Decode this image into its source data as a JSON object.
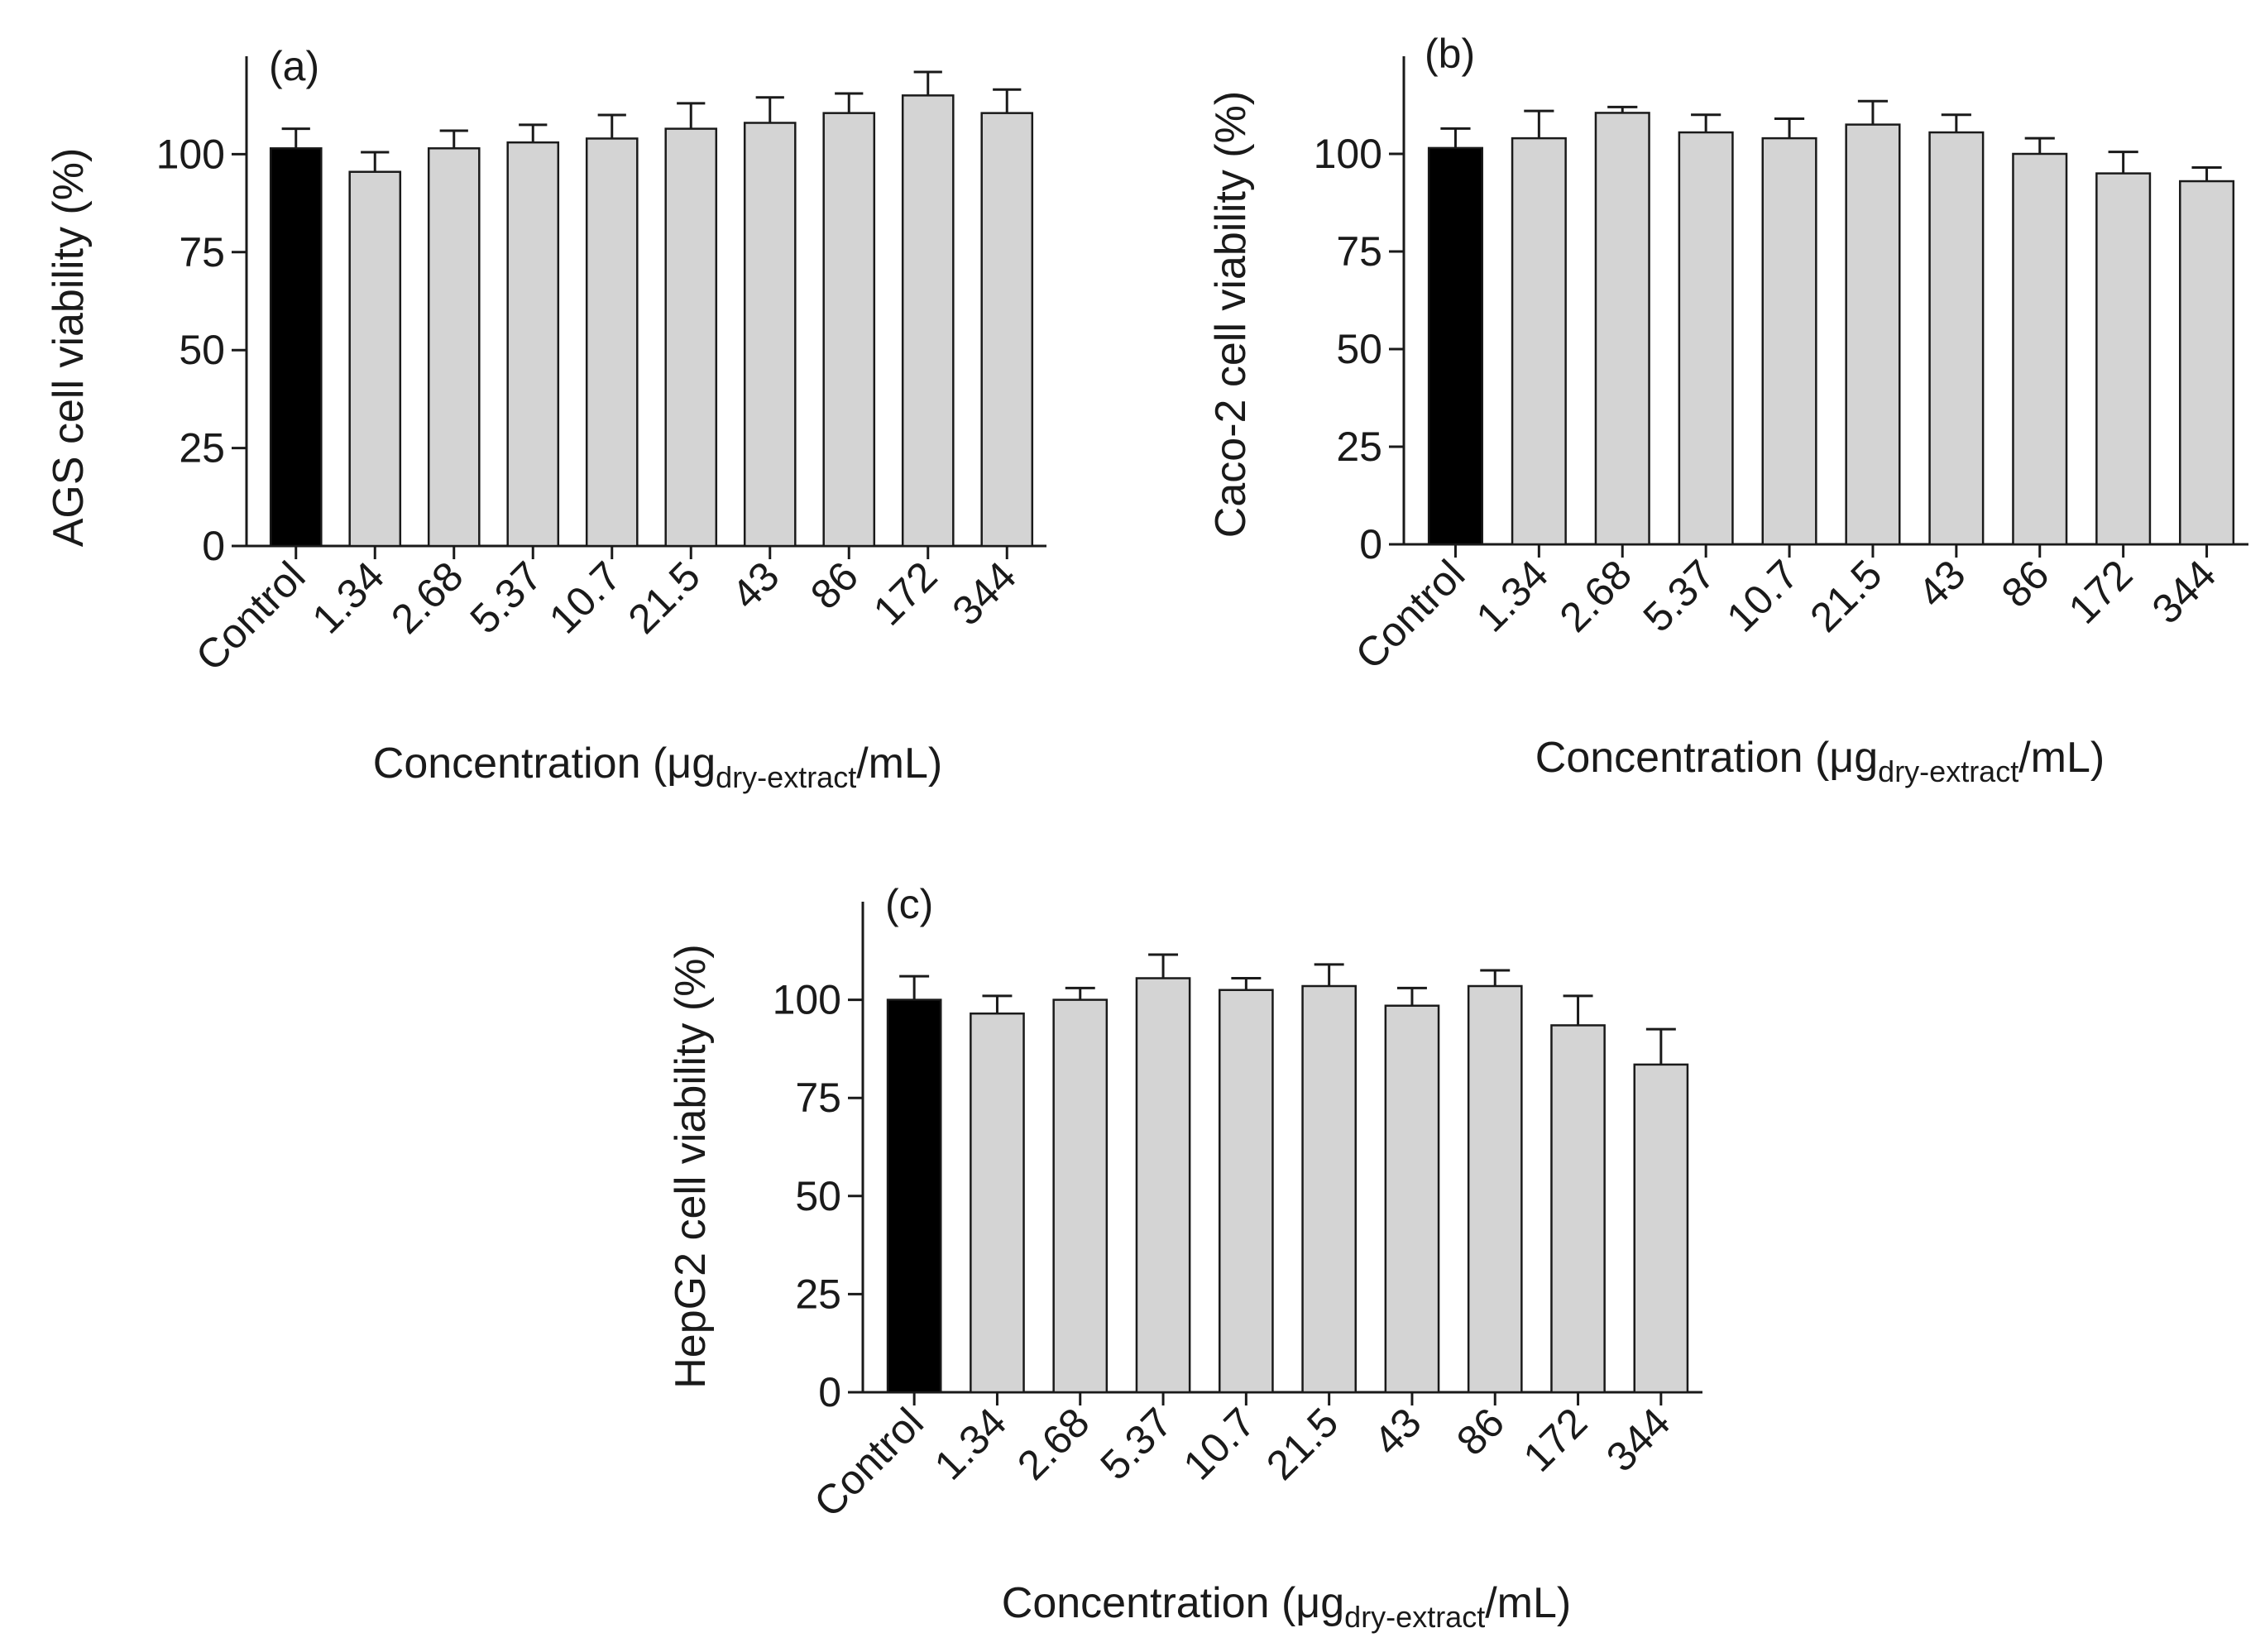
{
  "chart_data": [
    {
      "id": "a",
      "type": "bar",
      "panel_label": "(a)",
      "ylabel": "AGS cell viability (%)",
      "xlabel_main": "Concentration (μg",
      "xlabel_sub": "dry-extract",
      "xlabel_tail": "/mL)",
      "categories": [
        "Control",
        "1.34",
        "2.68",
        "5.37",
        "10.7",
        "21.5",
        "43",
        "86",
        "172",
        "344"
      ],
      "values": [
        101.5,
        95.5,
        101.5,
        103,
        104,
        106.5,
        108,
        110.5,
        115,
        110.5
      ],
      "errors": [
        5,
        5,
        4.5,
        4.5,
        6,
        6.5,
        6.5,
        5,
        6,
        6
      ],
      "colors": [
        "#000000",
        "#d4d4d4",
        "#d4d4d4",
        "#d4d4d4",
        "#d4d4d4",
        "#d4d4d4",
        "#d4d4d4",
        "#d4d4d4",
        "#d4d4d4",
        "#d4d4d4"
      ],
      "yticks": [
        0,
        25,
        50,
        75,
        100
      ],
      "ylim": [
        0,
        125
      ]
    },
    {
      "id": "b",
      "type": "bar",
      "panel_label": "(b)",
      "ylabel": "Caco-2 cell viability (%)",
      "xlabel_main": "Concentration (μg",
      "xlabel_sub": "dry-extract",
      "xlabel_tail": "/mL)",
      "categories": [
        "Control",
        "1.34",
        "2.68",
        "5.37",
        "10.7",
        "21.5",
        "43",
        "86",
        "172",
        "344"
      ],
      "values": [
        101.5,
        104,
        110.5,
        105.5,
        104,
        107.5,
        105.5,
        100,
        95,
        93
      ],
      "errors": [
        5,
        7,
        1.5,
        4.5,
        5,
        6,
        4.5,
        4,
        5.5,
        3.5
      ],
      "colors": [
        "#000000",
        "#d4d4d4",
        "#d4d4d4",
        "#d4d4d4",
        "#d4d4d4",
        "#d4d4d4",
        "#d4d4d4",
        "#d4d4d4",
        "#d4d4d4",
        "#d4d4d4"
      ],
      "yticks": [
        0,
        25,
        50,
        75,
        100
      ],
      "ylim": [
        0,
        125
      ]
    },
    {
      "id": "c",
      "type": "bar",
      "panel_label": "(c)",
      "ylabel": "HepG2 cell viability (%)",
      "xlabel_main": "Concentration (μg",
      "xlabel_sub": "dry-extract",
      "xlabel_tail": "/mL)",
      "categories": [
        "Control",
        "1.34",
        "2.68",
        "5.37",
        "10.7",
        "21.5",
        "43",
        "86",
        "172",
        "344"
      ],
      "values": [
        100,
        96.5,
        100,
        105.5,
        102.5,
        103.5,
        98.5,
        103.5,
        93.5,
        83.5
      ],
      "errors": [
        6,
        4.5,
        3,
        6,
        3,
        5.5,
        4.5,
        4,
        7.5,
        9
      ],
      "colors": [
        "#000000",
        "#d4d4d4",
        "#d4d4d4",
        "#d4d4d4",
        "#d4d4d4",
        "#d4d4d4",
        "#d4d4d4",
        "#d4d4d4",
        "#d4d4d4",
        "#d4d4d4"
      ],
      "yticks": [
        0,
        25,
        50,
        75,
        100
      ],
      "ylim": [
        0,
        125
      ]
    }
  ]
}
